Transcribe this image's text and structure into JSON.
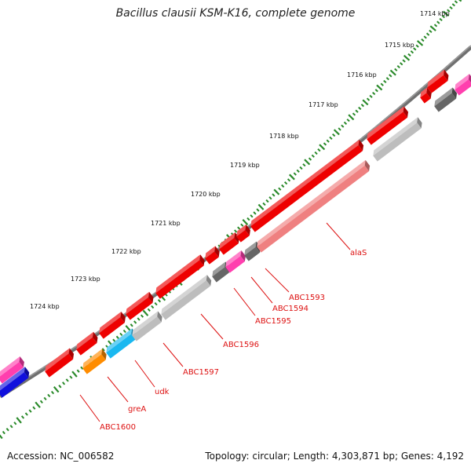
{
  "title": "Bacillus clausii KSM-K16, complete genome",
  "accession": "Accession: NC_006582",
  "topology": "Topology: circular; Length: 4,303,871 bp; Genes: 4,192",
  "ticks": [
    "1714 kbp",
    "1715 kbp",
    "1716 kbp",
    "1717 kbp",
    "1718 kbp",
    "1719 kbp",
    "1720 kbp",
    "1721 kbp",
    "1722 kbp",
    "1723 kbp",
    "1724 kbp"
  ],
  "gene_labels": [
    "alaS",
    "ABC1593",
    "ABC1594",
    "ABC1595",
    "ABC1596",
    "ABC1597",
    "udk",
    "greA",
    "ABC1600"
  ],
  "colors": {
    "backbone": "#707070",
    "gene_red": "#ee0000",
    "gene_pink": "#ef8080",
    "gene_gray": "#bdbdbd",
    "gene_darkgray": "#666666",
    "gene_magenta": "#ff3fae",
    "gene_cyan": "#1ab8f0",
    "gene_orange": "#ff8c00",
    "gene_blue": "#1010dd",
    "tick_green": "#2a8a2a",
    "label_red": "#dd1111"
  }
}
